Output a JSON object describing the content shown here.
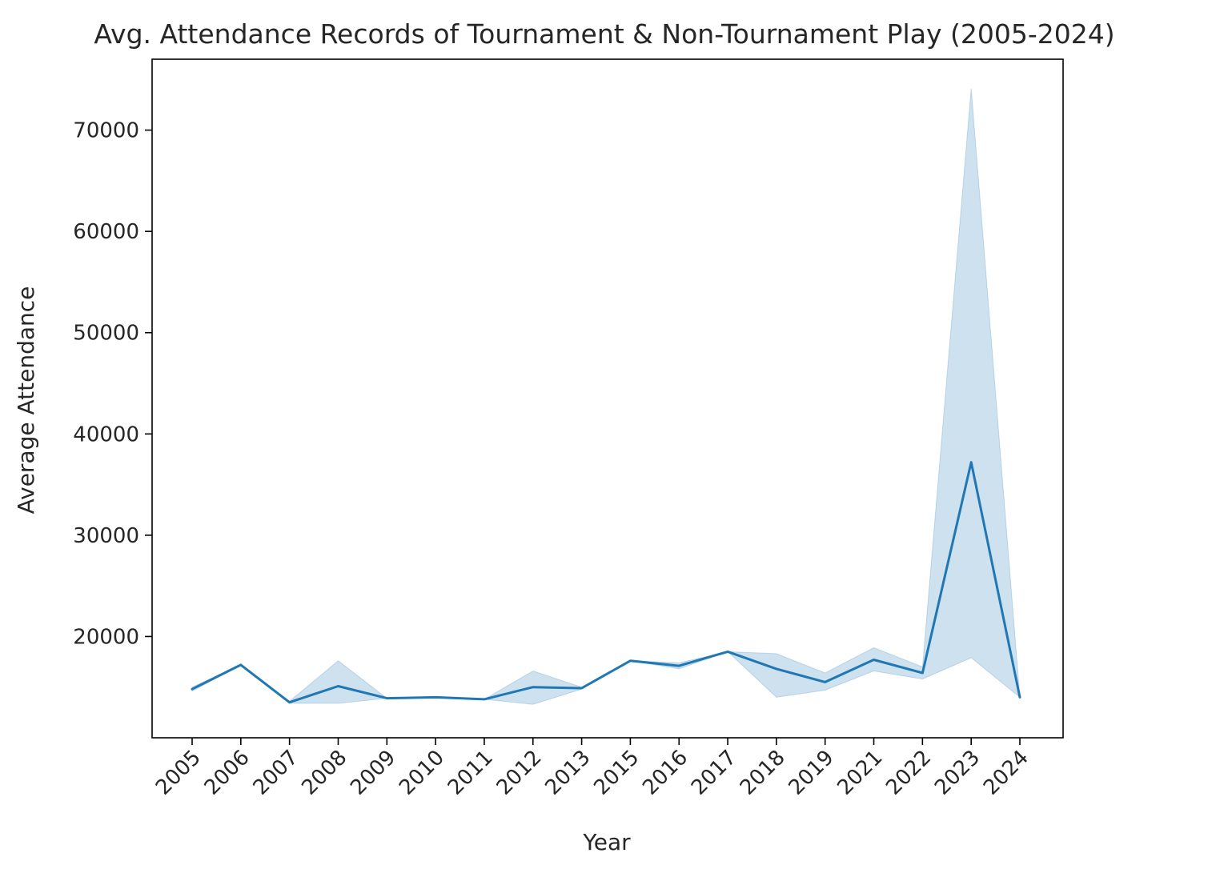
{
  "chart_data": {
    "type": "line",
    "title": "Avg. Attendance Records of Tournament & Non-Tournament Play (2005-2024)",
    "xlabel": "Year",
    "ylabel": "Average Attendance",
    "categories": [
      "2005",
      "2006",
      "2007",
      "2008",
      "2009",
      "2010",
      "2011",
      "2012",
      "2013",
      "2015",
      "2016",
      "2017",
      "2018",
      "2019",
      "2021",
      "2022",
      "2023",
      "2024"
    ],
    "y_ticks": [
      20000,
      30000,
      40000,
      50000,
      60000,
      70000
    ],
    "y_tick_labels": [
      "20000",
      "30000",
      "40000",
      "50000",
      "60000",
      "70000"
    ],
    "ylim": [
      10000,
      77000
    ],
    "grid": false,
    "legend": "none",
    "series": [
      {
        "values": [
          14800,
          17200,
          13500,
          15100,
          13900,
          14000,
          13800,
          15000,
          14900,
          17600,
          17100,
          18500,
          16800,
          15500,
          17700,
          16400,
          37200,
          14000
        ],
        "ci_lower": [
          14600,
          17200,
          13400,
          13400,
          13900,
          14000,
          13800,
          13300,
          14800,
          17600,
          16800,
          18500,
          14000,
          14700,
          16600,
          15800,
          17900,
          14000
        ],
        "ci_upper": [
          15000,
          17200,
          13600,
          17600,
          13900,
          14000,
          13800,
          16600,
          15000,
          17600,
          17400,
          18500,
          18300,
          16400,
          18900,
          17000,
          74100,
          14000
        ]
      }
    ],
    "colors": {
      "line": "#1f77b4",
      "band": "#1f77b4"
    }
  }
}
